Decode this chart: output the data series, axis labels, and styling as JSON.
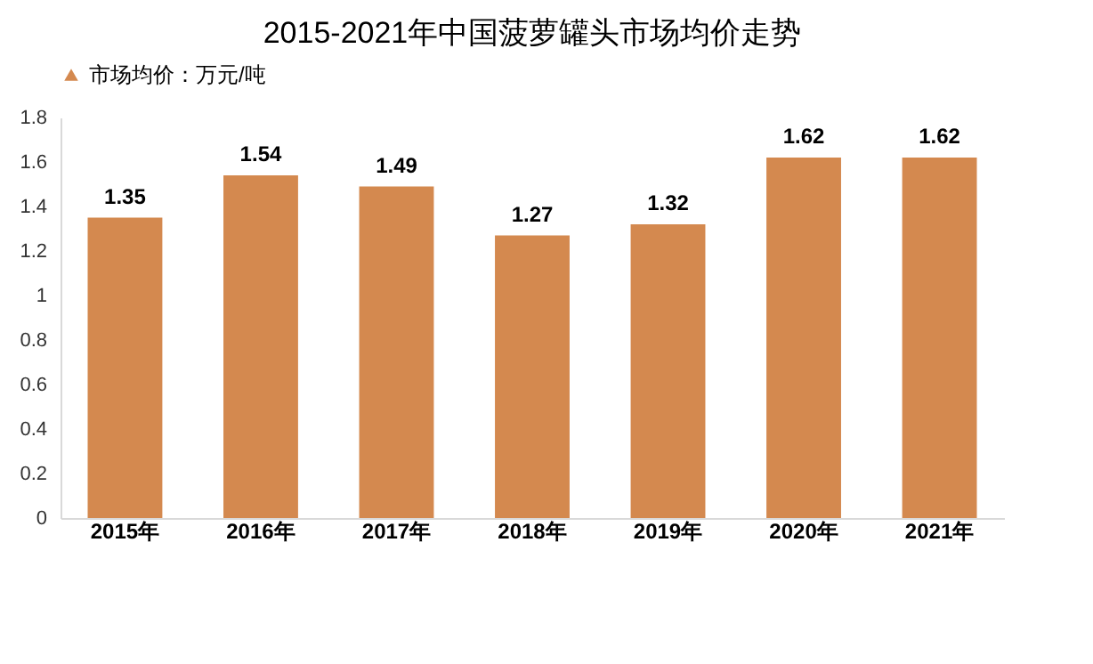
{
  "chart_data": {
    "type": "bar",
    "title": "2015-2021年中国菠萝罐头市场均价走势",
    "categories": [
      "2015年",
      "2016年",
      "2017年",
      "2018年",
      "2019年",
      "2020年",
      "2021年"
    ],
    "series": [
      {
        "name": "市场均价：万元/吨",
        "color": "#d4894f",
        "values": [
          1.35,
          1.54,
          1.49,
          1.27,
          1.32,
          1.62,
          1.62
        ]
      }
    ],
    "ylim": [
      0,
      1.8
    ],
    "yticks": [
      0,
      0.2,
      0.4,
      0.6,
      0.8,
      1,
      1.2,
      1.4,
      1.6,
      1.8
    ],
    "data_labels": true,
    "legend": "top",
    "grid": false
  }
}
